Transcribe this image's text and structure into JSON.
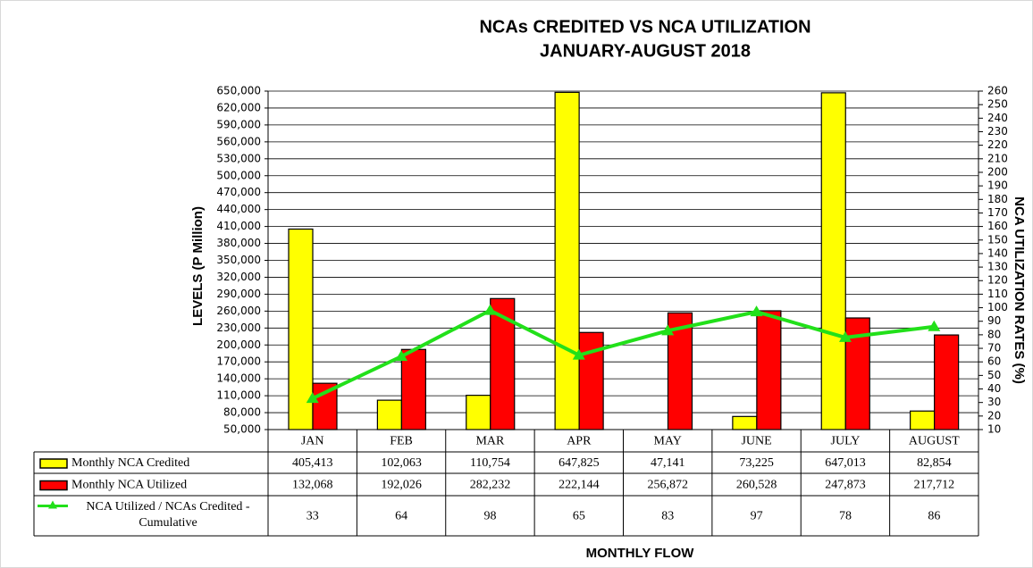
{
  "chart_data": {
    "type": "bar-line",
    "title": [
      "NCAs CREDITED VS NCA UTILIZATION",
      "JANUARY-AUGUST 2018"
    ],
    "x_label": "MONTHLY FLOW",
    "y_label": "LEVELS (P Million)",
    "y2_label": "NCA UTILIZATION RATES (%)",
    "categories": [
      "JAN",
      "FEB",
      "MAR",
      "APR",
      "MAY",
      "JUNE",
      "JULY",
      "AUGUST"
    ],
    "series": [
      {
        "name": "Monthly NCA Credited",
        "color": "#ffff00",
        "type": "bar",
        "values": [
          405413,
          102063,
          110754,
          647825,
          47141,
          73225,
          647013,
          82854
        ],
        "value_labels": [
          "405,413",
          "102,063",
          "110,754",
          "647,825",
          "47,141",
          "73,225",
          "647,013",
          "82,854"
        ]
      },
      {
        "name": "Monthly NCA Utilized",
        "color": "#ff0000",
        "type": "bar",
        "values": [
          132068,
          192026,
          282232,
          222144,
          256872,
          260528,
          247873,
          217712
        ],
        "value_labels": [
          "132,068",
          "192,026",
          "282,232",
          "222,144",
          "256,872",
          "260,528",
          "247,873",
          "217,712"
        ]
      },
      {
        "name": "NCA Utilized / NCAs Credited - Cumulative",
        "color": "#22e01a",
        "type": "line",
        "axis": "y2",
        "values": [
          33,
          64,
          98,
          65,
          83,
          97,
          78,
          86
        ]
      }
    ],
    "ylim": [
      50000,
      650000
    ],
    "yticks": [
      {
        "value": 50000,
        "label": "50,000"
      },
      {
        "value": 80000,
        "label": "80,000"
      },
      {
        "value": 110000,
        "label": "110,000"
      },
      {
        "value": 140000,
        "label": "140,000"
      },
      {
        "value": 170000,
        "label": "170,000"
      },
      {
        "value": 200000,
        "label": "200,000"
      },
      {
        "value": 230000,
        "label": "230,000"
      },
      {
        "value": 260000,
        "label": "260,000"
      },
      {
        "value": 290000,
        "label": "290,000"
      },
      {
        "value": 320000,
        "label": "320,000"
      },
      {
        "value": 350000,
        "label": "350,000"
      },
      {
        "value": 380000,
        "label": "380,000"
      },
      {
        "value": 410000,
        "label": "410,000"
      },
      {
        "value": 440000,
        "label": "440,000"
      },
      {
        "value": 470000,
        "label": "470,000"
      },
      {
        "value": 500000,
        "label": "500,000"
      },
      {
        "value": 530000,
        "label": "530,000"
      },
      {
        "value": 560000,
        "label": "560,000"
      },
      {
        "value": 590000,
        "label": "590,000"
      },
      {
        "value": 620000,
        "label": "620,000"
      },
      {
        "value": 650000,
        "label": "650,000"
      }
    ],
    "y2lim": [
      10,
      260
    ],
    "y2ticks": [
      10,
      20,
      30,
      40,
      50,
      60,
      70,
      80,
      90,
      100,
      110,
      120,
      130,
      140,
      150,
      160,
      170,
      180,
      190,
      200,
      210,
      220,
      230,
      240,
      250,
      260
    ],
    "grid": true
  }
}
